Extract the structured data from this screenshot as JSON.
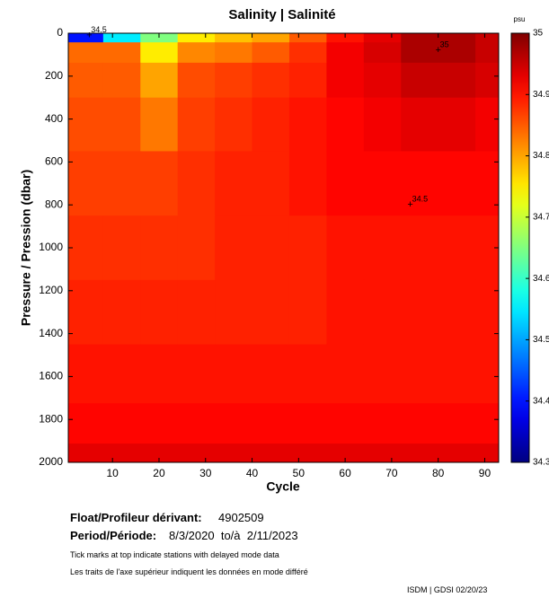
{
  "chart_data": {
    "type": "heatmap",
    "title": "Salinity | Salinité",
    "xlabel": "Cycle",
    "ylabel": "Pressure / Pression (dbar)",
    "x": [
      4,
      12,
      20,
      28,
      36,
      44,
      52,
      60,
      68,
      76,
      84,
      92
    ],
    "y": [
      10,
      75,
      200,
      400,
      700,
      1000,
      1300,
      1600,
      1850,
      1975
    ],
    "z": [
      [
        34.4,
        34.55,
        34.65,
        34.75,
        34.78,
        34.8,
        34.85,
        34.9,
        34.93,
        34.97,
        34.97,
        34.95
      ],
      [
        34.84,
        34.84,
        34.75,
        34.82,
        34.83,
        34.85,
        34.88,
        34.92,
        34.94,
        34.97,
        34.97,
        34.95
      ],
      [
        34.85,
        34.85,
        34.8,
        34.86,
        34.87,
        34.88,
        34.89,
        34.92,
        34.93,
        34.95,
        34.95,
        34.94
      ],
      [
        34.86,
        34.86,
        34.83,
        34.87,
        34.88,
        34.89,
        34.9,
        34.91,
        34.92,
        34.93,
        34.93,
        34.92
      ],
      [
        34.87,
        34.87,
        34.87,
        34.88,
        34.89,
        34.89,
        34.9,
        34.91,
        34.91,
        34.91,
        34.91,
        34.91
      ],
      [
        34.88,
        34.88,
        34.88,
        34.88,
        34.89,
        34.89,
        34.89,
        34.9,
        34.9,
        34.9,
        34.9,
        34.9
      ],
      [
        34.89,
        34.89,
        34.89,
        34.89,
        34.89,
        34.89,
        34.89,
        34.9,
        34.9,
        34.9,
        34.9,
        34.9
      ],
      [
        34.9,
        34.9,
        34.9,
        34.9,
        34.9,
        34.9,
        34.9,
        34.9,
        34.9,
        34.9,
        34.9,
        34.9
      ],
      [
        34.91,
        34.91,
        34.91,
        34.91,
        34.91,
        34.91,
        34.91,
        34.91,
        34.91,
        34.91,
        34.91,
        34.91
      ],
      [
        34.93,
        34.93,
        34.93,
        34.93,
        34.93,
        34.93,
        34.93,
        34.93,
        34.93,
        34.93,
        34.93,
        34.93
      ]
    ],
    "xlim": [
      0.5,
      93
    ],
    "xticks": [
      10,
      20,
      30,
      40,
      50,
      60,
      70,
      80,
      90
    ],
    "ylim": [
      0,
      2000
    ],
    "yticks": [
      0,
      200,
      400,
      600,
      800,
      1000,
      1200,
      1400,
      1600,
      1800,
      2000
    ],
    "y_inverted": true,
    "colormap": "jet",
    "colorbar": {
      "label": "psu",
      "lim": [
        34.3,
        35
      ],
      "ticks": [
        34.3,
        34.4,
        34.5,
        34.6,
        34.7,
        34.8,
        34.9,
        35
      ]
    },
    "annotations": [
      {
        "text": "34.5",
        "x": 5,
        "y": 10
      },
      {
        "text": "35",
        "x": 80,
        "y": 80
      },
      {
        "text": "34.5",
        "x": 74,
        "y": 800
      }
    ]
  },
  "info": {
    "float_label": "Float/Profileur dérivant:",
    "float_id": "4902509",
    "period_label": "Period/Période:",
    "period": "8/3/2020  to/à  2/11/2023",
    "note_en": "Tick marks at top indicate stations with delayed mode data",
    "note_fr": "Les traits de l'axe supérieur indiquent les données en mode différé",
    "credit": "ISDM | GDSI 02/20/23"
  }
}
